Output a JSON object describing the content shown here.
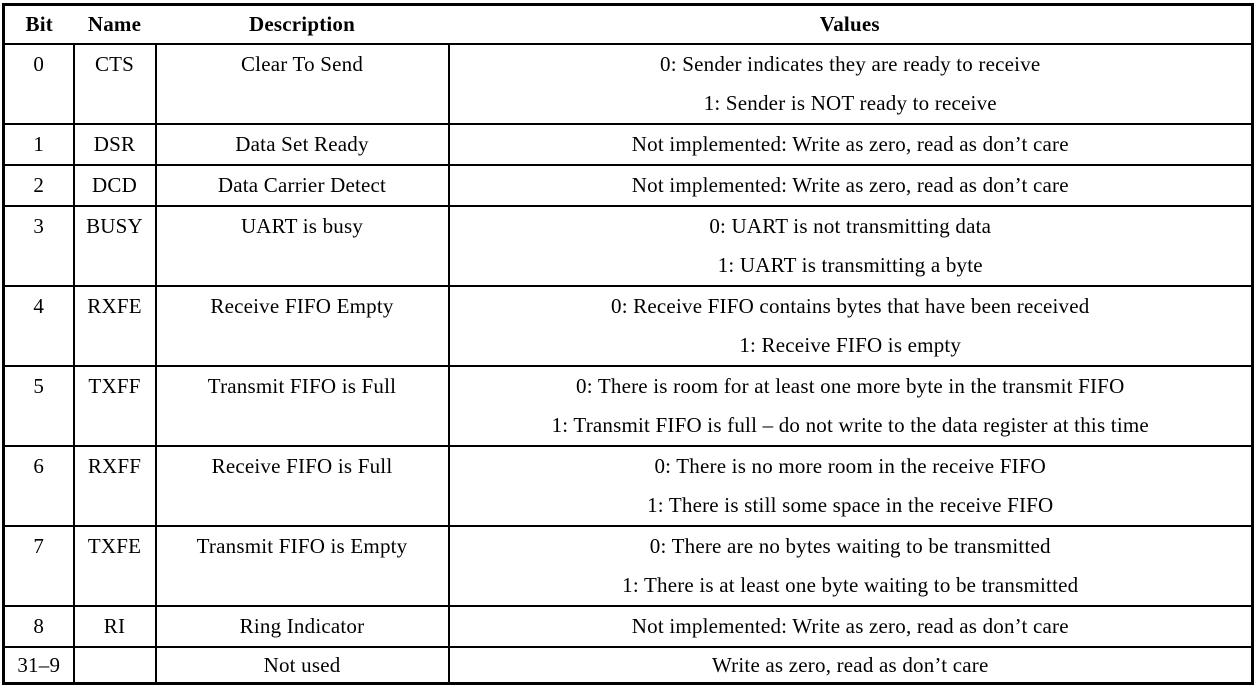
{
  "colors": {
    "border": "#000000",
    "text": "#000000",
    "background": "#ffffff"
  },
  "table": {
    "columns": [
      "Bit",
      "Name",
      "Description",
      "Values"
    ],
    "rows": [
      {
        "bit": "0",
        "name": "CTS",
        "description": "Clear To Send",
        "values": [
          "0: Sender indicates they are ready to receive",
          "1: Sender is NOT ready to receive"
        ]
      },
      {
        "bit": "1",
        "name": "DSR",
        "description": "Data Set Ready",
        "values": [
          "Not implemented: Write as zero, read as don’t care"
        ]
      },
      {
        "bit": "2",
        "name": "DCD",
        "description": "Data Carrier Detect",
        "values": [
          "Not implemented: Write as zero, read as don’t care"
        ]
      },
      {
        "bit": "3",
        "name": "BUSY",
        "description": "UART is busy",
        "values": [
          "0: UART is not transmitting data",
          "1: UART is transmitting a byte"
        ]
      },
      {
        "bit": "4",
        "name": "RXFE",
        "description": "Receive FIFO Empty",
        "values": [
          "0: Receive FIFO contains bytes that have been received",
          "1: Receive FIFO is empty"
        ]
      },
      {
        "bit": "5",
        "name": "TXFF",
        "description": "Transmit FIFO is Full",
        "values": [
          "0: There is room for at least one more byte in the transmit FIFO",
          "1: Transmit FIFO is full – do not write to the data register at this time"
        ]
      },
      {
        "bit": "6",
        "name": "RXFF",
        "description": "Receive FIFO is Full",
        "values": [
          "0: There is no more room in the receive FIFO",
          "1: There is still some space in the receive FIFO"
        ]
      },
      {
        "bit": "7",
        "name": "TXFE",
        "description": "Transmit FIFO is Empty",
        "values": [
          "0: There are no bytes waiting to be transmitted",
          "1: There is at least one byte waiting to be transmitted"
        ]
      },
      {
        "bit": "8",
        "name": "RI",
        "description": "Ring Indicator",
        "values": [
          "Not implemented: Write as zero, read as don’t care"
        ]
      },
      {
        "bit": "31–9",
        "name": "",
        "description": "Not used",
        "values": [
          "Write as zero, read as don’t care"
        ]
      }
    ]
  }
}
